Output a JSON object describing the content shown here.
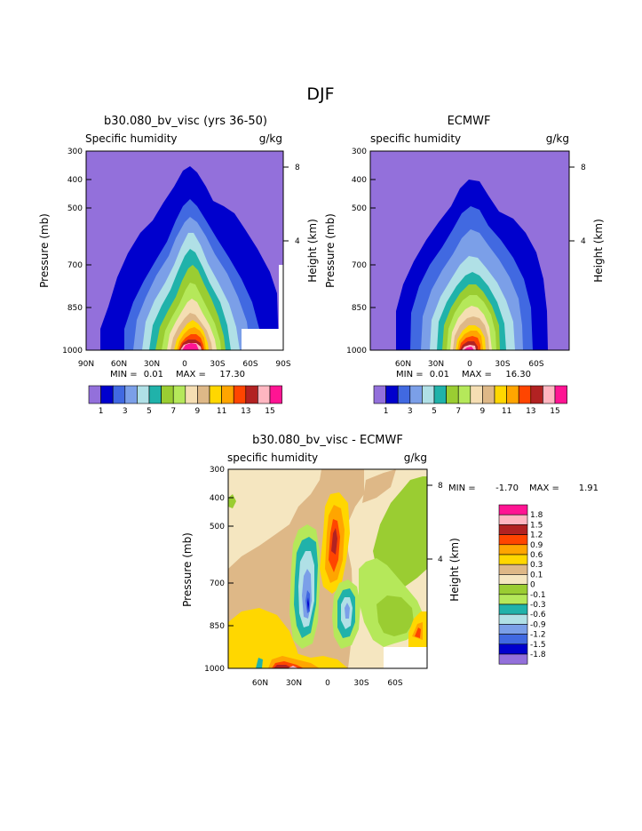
{
  "page": {
    "title": "DJF"
  },
  "chart_data": [
    {
      "type": "contour",
      "title": "b30.080_bv_visc (yrs 36-50)",
      "subtitle_left": "Specific humidity",
      "subtitle_right": "g/kg",
      "ylabel": "Pressure (mb)",
      "y2label": "Height (km)",
      "y_ticks": [
        "300",
        "400",
        "500",
        "700",
        "850",
        "1000"
      ],
      "y2_ticks": [
        "8",
        "4"
      ],
      "x_ticks": [
        "90N",
        "60N",
        "30N",
        "0",
        "30S",
        "60S",
        "90S"
      ],
      "min_label": "MIN =",
      "min": "0.01",
      "max_label": "MAX =",
      "max": "17.30",
      "colorbar_labels": [
        "1",
        "3",
        "5",
        "7",
        "9",
        "11",
        "13",
        "15"
      ],
      "levels": [
        1,
        2,
        3,
        4,
        5,
        6,
        7,
        8,
        9,
        10,
        11,
        12,
        13,
        14,
        15
      ],
      "colors": [
        "#9370db",
        "#0000cd",
        "#4169e1",
        "#7b9fe8",
        "#b0e0e6",
        "#20b2aa",
        "#9acd32",
        "#b5e85a",
        "#f5deb3",
        "#deb887",
        "#ffd700",
        "#ffa500",
        "#ff4500",
        "#b22222",
        "#ffb6c1",
        "#ff1493"
      ]
    },
    {
      "type": "contour",
      "title": "ECMWF",
      "subtitle_left": "specific humidity",
      "subtitle_right": "g/kg",
      "ylabel": "Pressure (mb)",
      "y2label": "Height (km)",
      "y_ticks": [
        "300",
        "400",
        "500",
        "700",
        "850",
        "1000"
      ],
      "y2_ticks": [
        "8",
        "4"
      ],
      "x_ticks": [
        "60N",
        "30N",
        "0",
        "30S",
        "60S"
      ],
      "min_label": "MIN =",
      "min": "0.01",
      "max_label": "MAX =",
      "max": "16.30",
      "colorbar_labels": [
        "1",
        "3",
        "5",
        "7",
        "9",
        "11",
        "13",
        "15"
      ],
      "levels": [
        1,
        2,
        3,
        4,
        5,
        6,
        7,
        8,
        9,
        10,
        11,
        12,
        13,
        14,
        15
      ],
      "colors": [
        "#9370db",
        "#0000cd",
        "#4169e1",
        "#7b9fe8",
        "#b0e0e6",
        "#20b2aa",
        "#9acd32",
        "#b5e85a",
        "#f5deb3",
        "#deb887",
        "#ffd700",
        "#ffa500",
        "#ff4500",
        "#b22222",
        "#ffb6c1",
        "#ff1493"
      ]
    },
    {
      "type": "contour",
      "title": "b30.080_bv_visc - ECMWF",
      "subtitle_left": "specific humidity",
      "subtitle_right": "g/kg",
      "ylabel": "Pressure (mb)",
      "y2label": "Height (km)",
      "y_ticks": [
        "300",
        "400",
        "500",
        "700",
        "850",
        "1000"
      ],
      "y2_ticks": [
        "8",
        "4"
      ],
      "x_ticks": [
        "60N",
        "30N",
        "0",
        "30S",
        "60S"
      ],
      "min_label": "MIN =",
      "min": "-1.70",
      "max_label": "MAX =",
      "max": "1.91",
      "colorbar_labels": [
        "1.8",
        "1.5",
        "1.2",
        "0.9",
        "0.6",
        "0.3",
        "0.1",
        "0",
        "-0.1",
        "-0.3",
        "-0.6",
        "-0.9",
        "-1.2",
        "-1.5",
        "-1.8"
      ],
      "colors": [
        "#ff1493",
        "#ffb6c1",
        "#b22222",
        "#ff4500",
        "#ffa500",
        "#ffd700",
        "#deb887",
        "#f5e6c0",
        "#9acd32",
        "#b5e85a",
        "#20b2aa",
        "#b0e0e6",
        "#7b9fe8",
        "#4169e1",
        "#0000cd",
        "#9370db"
      ]
    }
  ]
}
